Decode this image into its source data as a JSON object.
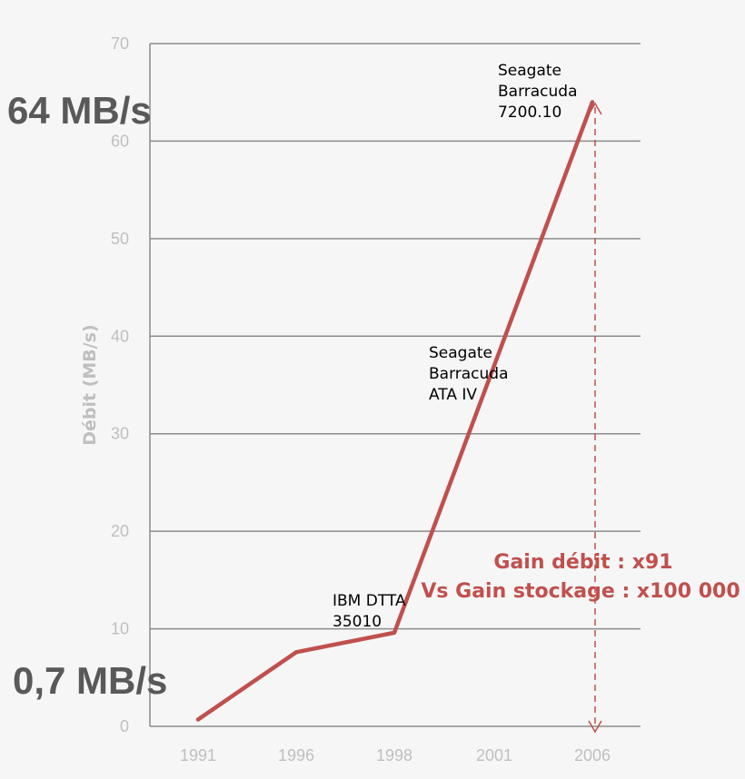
{
  "chart_data": {
    "type": "line",
    "title": "",
    "xlabel": "",
    "ylabel": "Débit (MB/s)",
    "categories": [
      "1991",
      "1996",
      "1998",
      "2001",
      "2006"
    ],
    "series": [
      {
        "name": "Débit",
        "values": [
          0.7,
          7.6,
          9.6,
          37,
          64
        ]
      }
    ],
    "ylim": [
      0,
      70
    ],
    "yticks": [
      0,
      10,
      20,
      30,
      40,
      50,
      60,
      70
    ],
    "grid": true,
    "line_color": "#c0504d",
    "annotations": [
      {
        "lines": [
          "IBM DTTA",
          "35010"
        ],
        "near": "1998"
      },
      {
        "lines": [
          "Seagate",
          "Barracuda",
          "ATA IV"
        ],
        "near": "2001"
      },
      {
        "lines": [
          "Seagate",
          "Barracuda",
          "7200.10"
        ],
        "near": "2006"
      }
    ],
    "callouts": {
      "max": "64 MB/s",
      "min": "0,7 MB/s"
    },
    "gain": [
      "Gain débit : x91",
      "Vs Gain stockage : x100 000"
    ]
  }
}
